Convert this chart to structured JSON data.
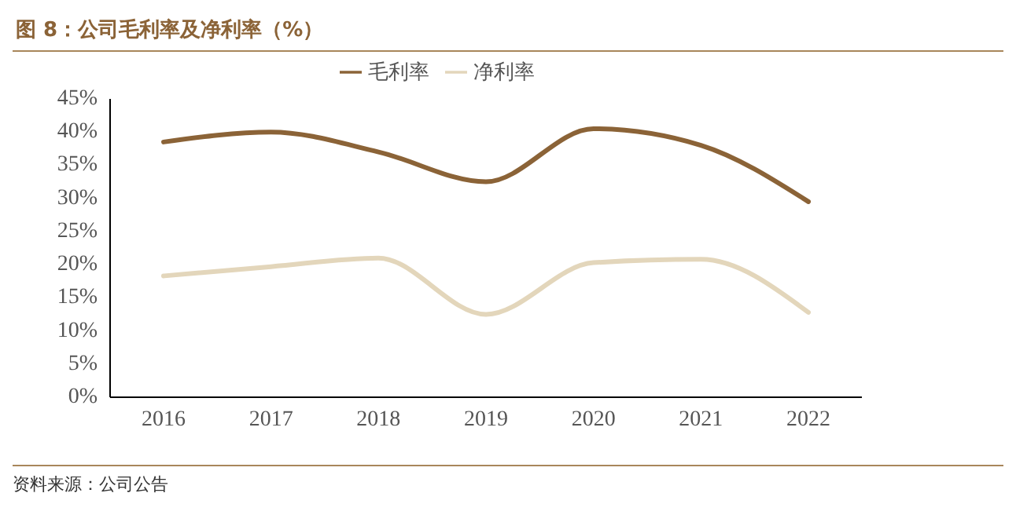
{
  "chart_data": {
    "type": "line",
    "title": "图 8：公司毛利率及净利率（%）",
    "categories": [
      "2016",
      "2017",
      "2018",
      "2019",
      "2020",
      "2021",
      "2022"
    ],
    "series": [
      {
        "name": "毛利率",
        "color": "#8b6337",
        "values": [
          38.5,
          40,
          37,
          32.5,
          40.5,
          38,
          29.5
        ]
      },
      {
        "name": "净利率",
        "color": "#e3d6bb",
        "values": [
          18.3,
          19.7,
          21,
          12.5,
          20.3,
          20.8,
          12.8
        ]
      }
    ],
    "ylim": [
      0,
      45
    ],
    "yticks": [
      {
        "value": 0,
        "label": "0%"
      },
      {
        "value": 5,
        "label": "5%"
      },
      {
        "value": 10,
        "label": "10%"
      },
      {
        "value": 15,
        "label": "15%"
      },
      {
        "value": 20,
        "label": "20%"
      },
      {
        "value": 25,
        "label": "25%"
      },
      {
        "value": 30,
        "label": "30%"
      },
      {
        "value": 35,
        "label": "35%"
      },
      {
        "value": 40,
        "label": "40%"
      },
      {
        "value": 45,
        "label": "45%"
      }
    ],
    "legend": "top",
    "grid": false,
    "marker": "none",
    "annotations": [
      "资料来源：公司公告"
    ]
  }
}
